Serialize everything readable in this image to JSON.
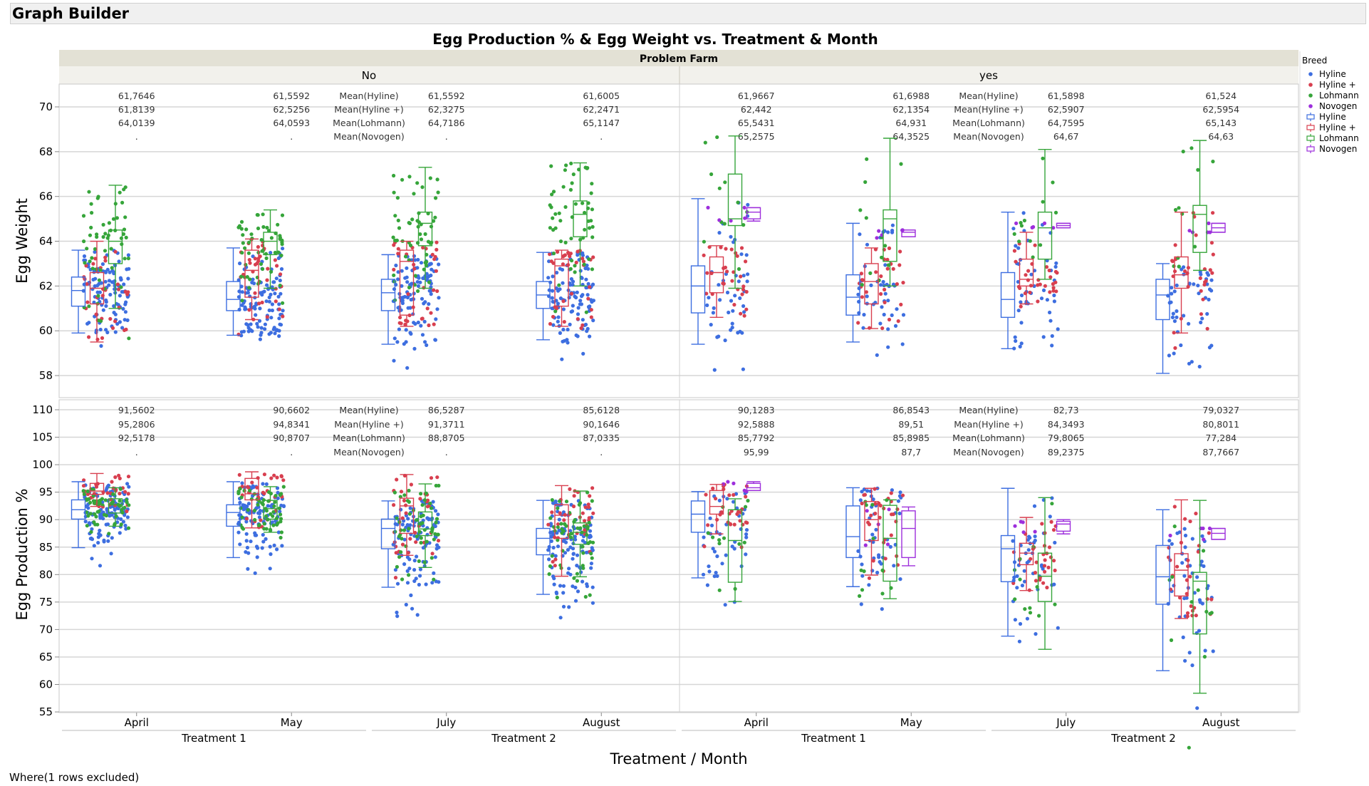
{
  "window": {
    "title": "Graph Builder"
  },
  "footer": {
    "note": "Where(1 rows excluded)"
  },
  "chart_data": {
    "type": "box+jitter",
    "title": "Egg Production % & Egg Weight vs. Treatment & Month",
    "group_label": "Problem Farm",
    "groups": [
      "No",
      "yes"
    ],
    "treatments": [
      "Treatment 1",
      "Treatment 2"
    ],
    "months": [
      "April",
      "May",
      "July",
      "August"
    ],
    "month_treatment": [
      "Treatment 1",
      "Treatment 1",
      "Treatment 2",
      "Treatment 2"
    ],
    "xlabel": "Treatment / Month",
    "legend": {
      "title": "Breed",
      "position": "right",
      "entries": [
        "Hyline",
        "Hyline +",
        "Lohmann",
        "Novogen"
      ],
      "colors": {
        "Hyline": "#3d6ee0",
        "Hyline +": "#d83f4f",
        "Lohmann": "#36a53a",
        "Novogen": "#9d2fdc"
      }
    },
    "mean_labels": [
      "Mean(Hyline)",
      "Mean(Hyline +)",
      "Mean(Lohmann)",
      "Mean(Novogen)"
    ],
    "grid": true,
    "panels": [
      {
        "ylabel": "Egg Weight",
        "ylim": [
          57,
          71.5
        ],
        "yticks": [
          58,
          60,
          62,
          64,
          66,
          68,
          70
        ],
        "means": {
          "No": [
            [
              "61,7646",
              "61,8139",
              "64,0139",
              "."
            ],
            [
              "61,5592",
              "62,5256",
              "64,0593",
              "."
            ],
            [
              "61,5592",
              "62,3275",
              "64,7186",
              "."
            ],
            [
              "61,6005",
              "62,2471",
              "65,1147",
              "."
            ]
          ],
          "yes": [
            [
              "61,9667",
              "62,442",
              "65,5431",
              "65,2575"
            ],
            [
              "61,6988",
              "62,1354",
              "64,931",
              "64,3525"
            ],
            [
              "61,5898",
              "62,5907",
              "64,7595",
              "64,67"
            ],
            [
              "61,524",
              "62,5954",
              "65,143",
              "64,63"
            ]
          ]
        },
        "boxes": {
          "No": [
            {
              "Hyline": [
                59.9,
                61.1,
                61.8,
                62.4,
                63.6
              ],
              "Hyline +": [
                59.5,
                61.2,
                61.9,
                62.6,
                64.0
              ],
              "Lohmann": [
                61.0,
                63.0,
                64.0,
                64.5,
                66.5
              ]
            },
            {
              "Hyline": [
                59.8,
                60.9,
                61.4,
                62.2,
                63.7
              ],
              "Hyline +": [
                60.5,
                61.5,
                62.7,
                63.6,
                64.1
              ],
              "Lohmann": [
                61.9,
                63.4,
                64.0,
                64.4,
                65.4
              ]
            },
            {
              "Hyline": [
                59.4,
                60.9,
                61.7,
                62.3,
                63.4
              ],
              "Hyline +": [
                60.2,
                60.7,
                63.1,
                63.6,
                64.0
              ],
              "Lohmann": [
                61.9,
                63.8,
                64.8,
                65.3,
                67.3
              ]
            },
            {
              "Hyline": [
                59.6,
                61.0,
                61.6,
                62.2,
                63.5
              ],
              "Hyline +": [
                60.2,
                61.1,
                62.9,
                63.2,
                63.6
              ],
              "Lohmann": [
                62.0,
                64.2,
                65.2,
                65.8,
                67.5
              ]
            }
          ],
          "yes": [
            {
              "Hyline": [
                59.4,
                60.8,
                62.0,
                62.9,
                65.9
              ],
              "Hyline +": [
                60.6,
                61.7,
                62.6,
                63.3,
                63.8
              ],
              "Lohmann": [
                61.9,
                64.7,
                65.0,
                67.0,
                68.7
              ],
              "Novogen": [
                64.9,
                65.0,
                65.3,
                65.5,
                65.5
              ]
            },
            {
              "Hyline": [
                59.5,
                60.7,
                61.5,
                62.5,
                64.8
              ],
              "Hyline +": [
                60.1,
                61.2,
                62.2,
                63.0,
                63.7
              ],
              "Lohmann": [
                62.0,
                63.1,
                65.0,
                65.4,
                68.6
              ],
              "Novogen": [
                64.2,
                64.2,
                64.4,
                64.5,
                64.5
              ]
            },
            {
              "Hyline": [
                59.2,
                60.6,
                61.4,
                62.6,
                65.3
              ],
              "Hyline +": [
                61.2,
                62.0,
                62.3,
                63.2,
                64.4
              ],
              "Lohmann": [
                62.3,
                63.2,
                64.6,
                65.3,
                68.1
              ],
              "Novogen": [
                64.6,
                64.6,
                64.7,
                64.8,
                64.8
              ]
            },
            {
              "Hyline": [
                58.1,
                60.5,
                61.6,
                62.3,
                63.0
              ],
              "Hyline +": [
                59.9,
                61.9,
                62.5,
                63.3,
                65.3
              ],
              "Lohmann": [
                62.7,
                63.5,
                65.2,
                65.6,
                68.5
              ],
              "Novogen": [
                64.4,
                64.4,
                64.6,
                64.8,
                64.8
              ]
            }
          ]
        }
      },
      {
        "ylabel": "Egg Production %",
        "ylim": [
          55,
          112
        ],
        "yticks": [
          55,
          60,
          65,
          70,
          75,
          80,
          85,
          90,
          95,
          100,
          105,
          110
        ],
        "means": {
          "No": [
            [
              "91,5602",
              "95,2806",
              "92,5178",
              "."
            ],
            [
              "90,6602",
              "94,8341",
              "90,8707",
              "."
            ],
            [
              "86,5287",
              "91,3711",
              "88,8705",
              "."
            ],
            [
              "85,6128",
              "90,1646",
              "87,0335",
              "."
            ]
          ],
          "yes": [
            [
              "90,1283",
              "92,5888",
              "85,7792",
              "95,99"
            ],
            [
              "86,8543",
              "89,51",
              "85,8985",
              "87,7"
            ],
            [
              "82,73",
              "84,3493",
              "79,8065",
              "89,2375"
            ],
            [
              "79,0327",
              "80,8011",
              "77,284",
              "87,7667"
            ]
          ]
        },
        "boxes": {
          "No": [
            {
              "Hyline": [
                84.9,
                90.1,
                91.8,
                93.6,
                96.9
              ],
              "Hyline +": [
                92.4,
                94.6,
                95.2,
                96.6,
                98.4
              ],
              "Lohmann": [
                88.8,
                91.2,
                92.7,
                93.8,
                95.8
              ]
            },
            {
              "Hyline": [
                83.1,
                88.8,
                91.3,
                92.7,
                96.9
              ],
              "Hyline +": [
                88.5,
                93.6,
                94.7,
                97.5,
                98.7
              ],
              "Lohmann": [
                87.7,
                90.1,
                92.0,
                93.5,
                96.0
              ]
            },
            {
              "Hyline": [
                77.7,
                84.7,
                88.4,
                90.1,
                93.4
              ],
              "Hyline +": [
                83.5,
                87.5,
                92.5,
                93.9,
                98.2
              ],
              "Lohmann": [
                81.3,
                87.1,
                88.3,
                91.4,
                96.5
              ]
            },
            {
              "Hyline": [
                76.4,
                83.6,
                86.6,
                88.4,
                93.5
              ],
              "Hyline +": [
                79.7,
                86.6,
                90.8,
                92.7,
                96.2
              ],
              "Lohmann": [
                79.6,
                85.5,
                87.7,
                89.4,
                95.2
              ]
            }
          ],
          "yes": [
            {
              "Hyline": [
                79.4,
                87.7,
                91.0,
                93.4,
                95.1
              ],
              "Hyline +": [
                87.4,
                91.0,
                92.4,
                95.3,
                96.4
              ],
              "Lohmann": [
                75.1,
                78.6,
                86.2,
                91.8,
                93.8
              ],
              "Novogen": [
                95.3,
                95.3,
                95.8,
                96.6,
                96.9
              ]
            },
            {
              "Hyline": [
                77.8,
                83.1,
                86.9,
                92.5,
                95.8
              ],
              "Hyline +": [
                79.9,
                86.2,
                90.0,
                93.3,
                95.7
              ],
              "Lohmann": [
                75.6,
                78.8,
                86.6,
                92.6,
                93.6
              ],
              "Novogen": [
                81.6,
                83.1,
                88.4,
                91.6,
                92.3
              ]
            },
            {
              "Hyline": [
                68.8,
                78.7,
                84.7,
                87.1,
                95.7
              ],
              "Hyline +": [
                77.1,
                81.8,
                83.9,
                85.7,
                90.4
              ],
              "Lohmann": [
                66.4,
                75.1,
                79.7,
                83.9,
                94.0
              ],
              "Novogen": [
                87.4,
                87.9,
                89.2,
                89.7,
                90.0
              ]
            },
            {
              "Hyline": [
                62.5,
                74.6,
                79.6,
                85.3,
                91.8
              ],
              "Hyline +": [
                72.0,
                76.1,
                80.8,
                83.8,
                93.6
              ],
              "Lohmann": [
                58.4,
                69.2,
                78.8,
                80.4,
                93.5
              ],
              "Novogen": [
                86.4,
                86.4,
                87.5,
                88.4,
                88.4
              ]
            }
          ]
        }
      }
    ]
  }
}
